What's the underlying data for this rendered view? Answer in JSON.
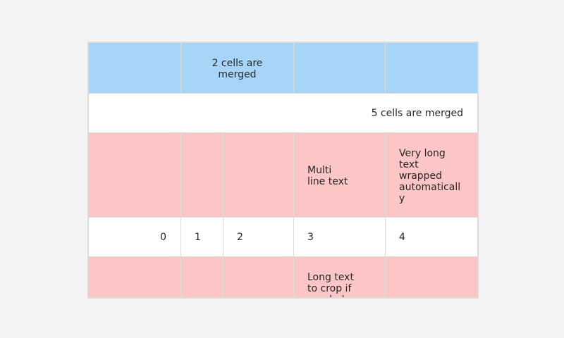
{
  "header_row": {
    "merged_cell_text": "2 cells are\nmerged"
  },
  "merged_row": {
    "merged_cell_text": "5 cells are merged"
  },
  "text_row": {
    "multiline_text": "Multi\nline text",
    "wrapped_text": "Very long\ntext\nwrapped\nautomaticall\ny"
  },
  "number_row": {
    "cells": [
      "0",
      "1",
      "2",
      "3",
      "4"
    ]
  },
  "crop_row": {
    "cropped_text": "Long text\nto crop if\nneeded"
  },
  "colors": {
    "header_blue": "#a6d5f8",
    "row_pink": "#fcc6c6",
    "row_white": "#ffffff",
    "grid_line": "#dcdcdc"
  }
}
